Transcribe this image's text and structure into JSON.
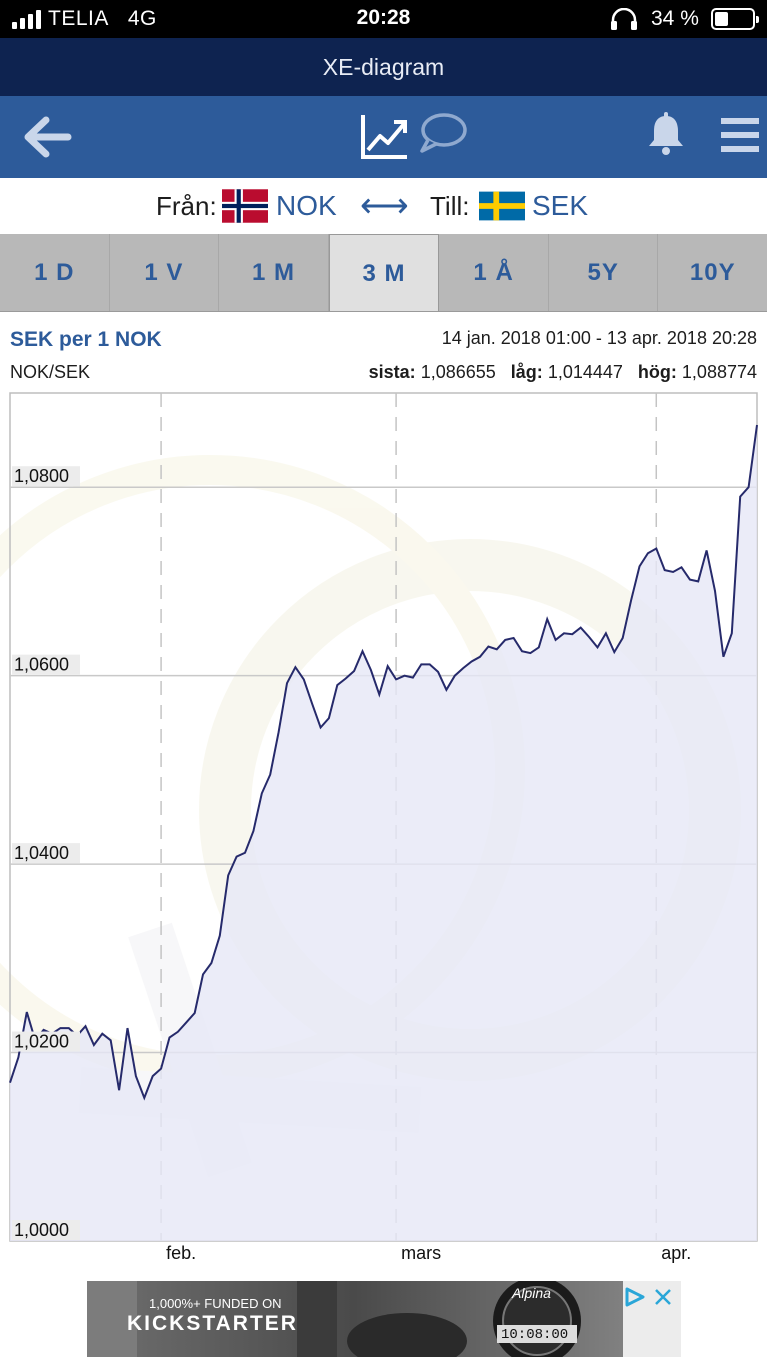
{
  "status_bar": {
    "carrier": "TELIA",
    "network": "4G",
    "time": "20:28",
    "battery_pct": "34 %",
    "battery_level": 0.34
  },
  "app": {
    "title": "XE-diagram"
  },
  "toolbar": {
    "icons": [
      "back-arrow-icon",
      "chart-icon",
      "chat-icon",
      "bell-icon",
      "menu-icon"
    ]
  },
  "pair": {
    "from_label": "Från:",
    "from_currency": "NOK",
    "to_label": "Till:",
    "to_currency": "SEK",
    "swap_symbol": "⟷"
  },
  "tabs": [
    {
      "label": "1 D",
      "active": false
    },
    {
      "label": "1 V",
      "active": false
    },
    {
      "label": "1 M",
      "active": false
    },
    {
      "label": "3 M",
      "active": true
    },
    {
      "label": "1 Å",
      "active": false
    },
    {
      "label": "5Y",
      "active": false
    },
    {
      "label": "10Y",
      "active": false
    }
  ],
  "info": {
    "title": "SEK per 1 NOK",
    "date_range": "14 jan. 2018 01:00 - 13 apr. 2018 20:28",
    "pair_code": "NOK/SEK",
    "last_label": "sista:",
    "last_value": "1,086655",
    "low_label": "låg:",
    "low_value": "1,014447",
    "high_label": "hög:",
    "high_value": "1,088774"
  },
  "chart_data": {
    "type": "area",
    "title": "SEK per 1 NOK",
    "series": [
      {
        "name": "NOK/SEK",
        "color": "#262a6b",
        "fill": "#e6e7f6",
        "x": [
          "2018-01-14",
          "2018-01-15",
          "2018-01-16",
          "2018-01-17",
          "2018-01-18",
          "2018-01-19",
          "2018-01-20",
          "2018-01-21",
          "2018-01-22",
          "2018-01-23",
          "2018-01-24",
          "2018-01-25",
          "2018-01-26",
          "2018-01-27",
          "2018-01-28",
          "2018-01-29",
          "2018-01-30",
          "2018-01-31",
          "2018-02-01",
          "2018-02-02",
          "2018-02-03",
          "2018-02-04",
          "2018-02-05",
          "2018-02-06",
          "2018-02-07",
          "2018-02-08",
          "2018-02-09",
          "2018-02-10",
          "2018-02-11",
          "2018-02-12",
          "2018-02-13",
          "2018-02-14",
          "2018-02-15",
          "2018-02-16",
          "2018-02-17",
          "2018-02-18",
          "2018-02-19",
          "2018-02-20",
          "2018-02-21",
          "2018-02-22",
          "2018-02-23",
          "2018-02-24",
          "2018-02-25",
          "2018-02-26",
          "2018-02-27",
          "2018-02-28",
          "2018-03-01",
          "2018-03-02",
          "2018-03-03",
          "2018-03-04",
          "2018-03-05",
          "2018-03-06",
          "2018-03-07",
          "2018-03-08",
          "2018-03-09",
          "2018-03-10",
          "2018-03-11",
          "2018-03-12",
          "2018-03-13",
          "2018-03-14",
          "2018-03-15",
          "2018-03-16",
          "2018-03-17",
          "2018-03-18",
          "2018-03-19",
          "2018-03-20",
          "2018-03-21",
          "2018-03-22",
          "2018-03-23",
          "2018-03-24",
          "2018-03-25",
          "2018-03-26",
          "2018-03-27",
          "2018-03-28",
          "2018-03-29",
          "2018-03-30",
          "2018-03-31",
          "2018-04-01",
          "2018-04-02",
          "2018-04-03",
          "2018-04-04",
          "2018-04-05",
          "2018-04-06",
          "2018-04-07",
          "2018-04-08",
          "2018-04-09",
          "2018-04-10",
          "2018-04-11",
          "2018-04-12",
          "2018-04-13"
        ],
        "values": [
          1.0168,
          1.0195,
          1.0243,
          1.0213,
          1.0224,
          1.022,
          1.0226,
          1.0226,
          1.0218,
          1.0228,
          1.0208,
          1.022,
          1.0213,
          1.016,
          1.0226,
          1.0175,
          1.0152,
          1.0175,
          1.0183,
          1.0216,
          1.0222,
          1.0232,
          1.0242,
          1.0283,
          1.0295,
          1.0324,
          1.0388,
          1.0408,
          1.0412,
          1.0435,
          1.0475,
          1.0495,
          1.054,
          1.0592,
          1.0609,
          1.0596,
          1.057,
          1.0545,
          1.0555,
          1.059,
          1.0597,
          1.0605,
          1.0626,
          1.0606,
          1.058,
          1.061,
          1.0596,
          1.06,
          1.0598,
          1.0612,
          1.0612,
          1.0604,
          1.0585,
          1.06,
          1.0608,
          1.0615,
          1.062,
          1.0631,
          1.0628,
          1.0638,
          1.064,
          1.0626,
          1.0624,
          1.063,
          1.066,
          1.0638,
          1.0645,
          1.0644,
          1.0651,
          1.0641,
          1.063,
          1.0645,
          1.0625,
          1.064,
          1.068,
          1.0716,
          1.073,
          1.0735,
          1.0712,
          1.071,
          1.0715,
          1.0702,
          1.07,
          1.0733,
          1.069,
          1.062,
          1.0645,
          1.079,
          1.08,
          1.0866
        ]
      }
    ],
    "x_ticks": [
      "feb.",
      "mars",
      "apr."
    ],
    "y_ticks": [
      "1,0000",
      "1,0200",
      "1,0400",
      "1,0600",
      "1,0800"
    ],
    "ylim": [
      1.0,
      1.09
    ],
    "grid": true
  },
  "ad": {
    "funded_text": "1,000%+ FUNDED ON",
    "brand": "KICKSTARTER",
    "watch_brand": "Alpina",
    "watch_time": "10:08:00"
  }
}
